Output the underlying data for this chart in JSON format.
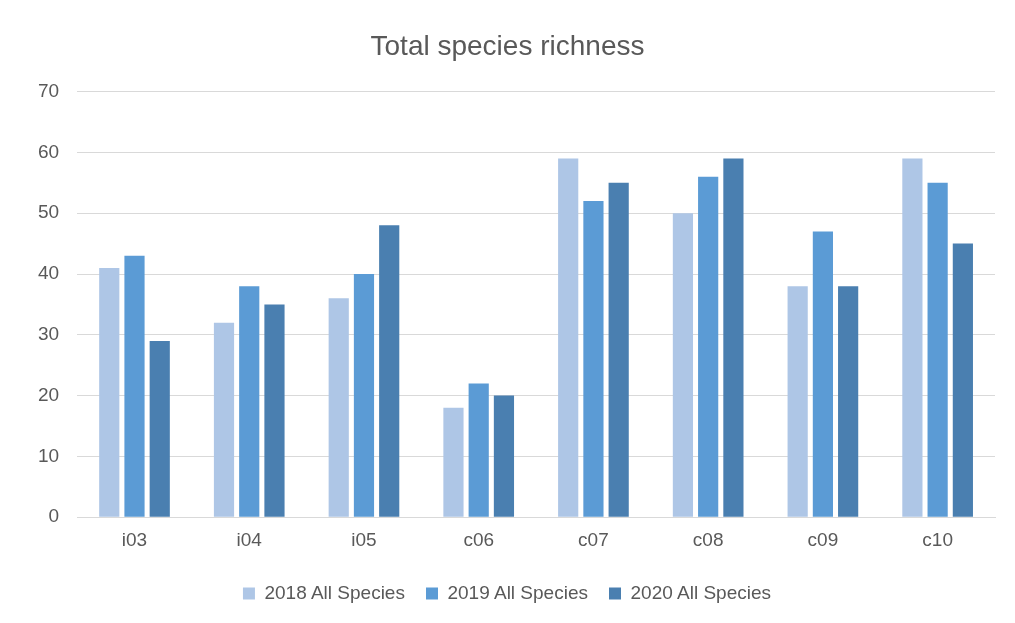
{
  "chart_data": {
    "type": "bar",
    "title": "Total species richness",
    "categories": [
      "i03",
      "i04",
      "i05",
      "c06",
      "c07",
      "c08",
      "c09",
      "c10"
    ],
    "series": [
      {
        "name": "2018 All Species",
        "color": "#aec6e6",
        "values": [
          41,
          32,
          36,
          18,
          59,
          50,
          38,
          59
        ]
      },
      {
        "name": "2019 All Species",
        "color": "#5b9bd5",
        "values": [
          43,
          38,
          40,
          22,
          52,
          56,
          47,
          55
        ]
      },
      {
        "name": "2020 All Species",
        "color": "#4a7fb0",
        "values": [
          29,
          35,
          48,
          20,
          55,
          59,
          38,
          45
        ]
      }
    ],
    "ylim": [
      0,
      70
    ],
    "yticks": [
      0,
      10,
      20,
      30,
      40,
      50,
      60,
      70
    ],
    "grid": "y",
    "legend": "bottom"
  }
}
